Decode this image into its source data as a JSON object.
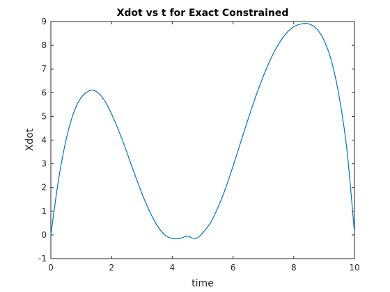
{
  "chart_data": {
    "type": "line",
    "title": "Xdot vs t for Exact Constrained",
    "xlabel": "time",
    "ylabel": "Xdot",
    "xlim": [
      0,
      10
    ],
    "ylim": [
      -1,
      9
    ],
    "x_ticks": [
      "0",
      "2",
      "4",
      "6",
      "8",
      "10"
    ],
    "y_ticks": [
      "-1",
      "0",
      "1",
      "2",
      "3",
      "4",
      "5",
      "6",
      "7",
      "8",
      "9"
    ],
    "grid": false,
    "line_color": "#0072bd",
    "series": [
      {
        "x": [
          0,
          0.25,
          0.5,
          0.75,
          1.0,
          1.25,
          1.4,
          1.6,
          1.8,
          2.0,
          2.25,
          2.5,
          2.75,
          3.0,
          3.25,
          3.5,
          3.75,
          4.0,
          4.25,
          4.5,
          4.7,
          4.9,
          5.25,
          5.5,
          5.75,
          6.0,
          6.25,
          6.5,
          6.75,
          7.0,
          7.25,
          7.5,
          7.75,
          8.0,
          8.25,
          8.5,
          8.75,
          9.0,
          9.25,
          9.5,
          9.75,
          10.0
        ],
        "y": [
          0.0,
          2.3,
          4.0,
          5.15,
          5.8,
          6.07,
          6.1,
          5.95,
          5.6,
          5.1,
          4.35,
          3.5,
          2.6,
          1.75,
          1.0,
          0.4,
          0.0,
          -0.15,
          -0.15,
          -0.05,
          -0.15,
          -0.05,
          0.5,
          1.15,
          1.95,
          2.9,
          3.9,
          4.9,
          5.85,
          6.7,
          7.45,
          8.05,
          8.5,
          8.78,
          8.9,
          8.9,
          8.7,
          8.2,
          7.3,
          5.8,
          3.6,
          0.1
        ]
      }
    ]
  }
}
